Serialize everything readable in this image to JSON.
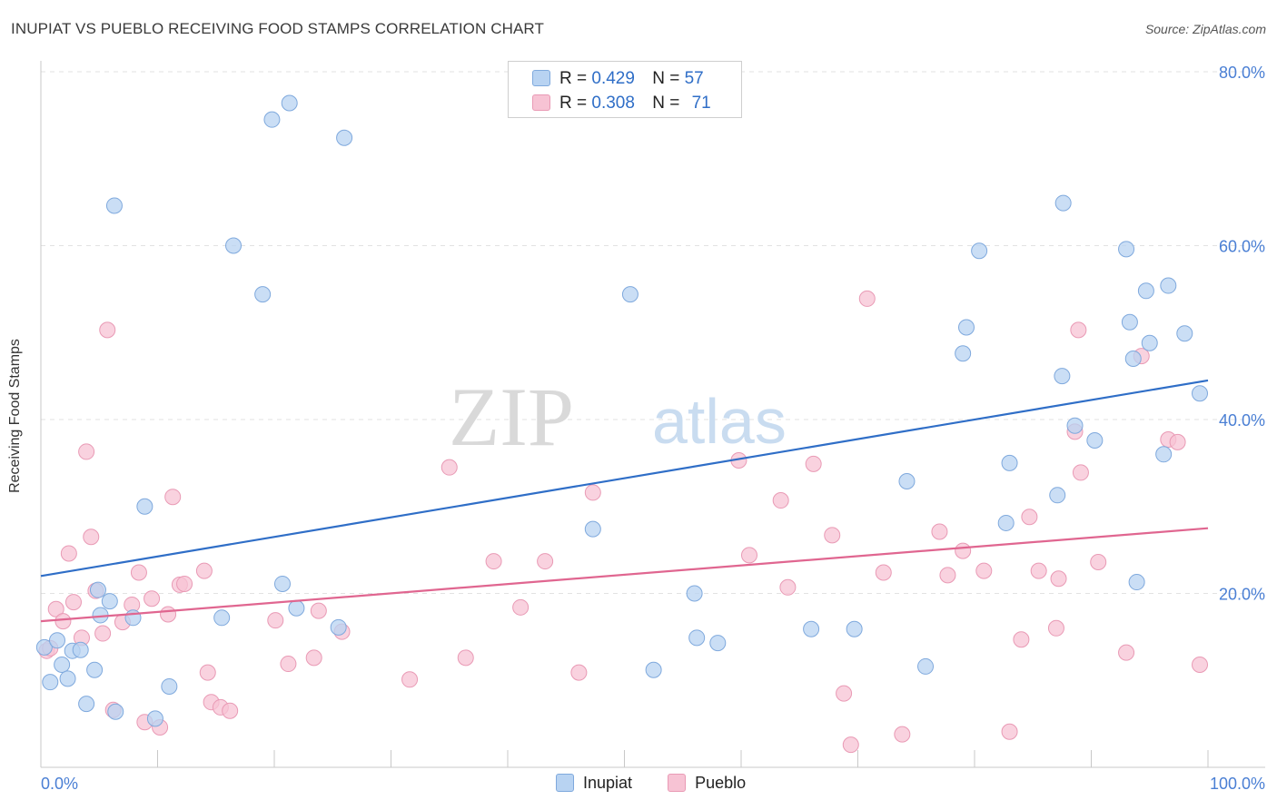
{
  "header": {
    "title": "INUPIAT VS PUEBLO RECEIVING FOOD STAMPS CORRELATION CHART",
    "source": "Source: ZipAtlas.com"
  },
  "watermark": {
    "part1": "ZIP",
    "part2": "atlas"
  },
  "legend": {
    "inupiat": {
      "r_label": "R =",
      "r_value": "0.429",
      "n_label": "N =",
      "n_value": "57"
    },
    "pueblo": {
      "r_label": "R =",
      "r_value": "0.308",
      "n_label": "N =",
      "n_value": "71"
    }
  },
  "colors": {
    "inupiat_fill": "#b8d3f2",
    "inupiat_stroke": "#7fa9dd",
    "inupiat_line": "#2f6ec7",
    "pueblo_fill": "#f7c3d4",
    "pueblo_stroke": "#e99ab5",
    "pueblo_line": "#e06690",
    "tick_text": "#4a7fd4"
  },
  "chart_data": {
    "type": "scatter",
    "title": "INUPIAT VS PUEBLO RECEIVING FOOD STAMPS CORRELATION CHART",
    "xlabel": "",
    "ylabel": "Receiving Food Stamps",
    "xlim": [
      0,
      100
    ],
    "ylim": [
      0,
      80
    ],
    "x_tick_labels": [
      "0.0%",
      "100.0%"
    ],
    "y_ticks": [
      20,
      40,
      60,
      80
    ],
    "y_tick_labels": [
      "20.0%",
      "40.0%",
      "60.0%",
      "80.0%"
    ],
    "grid": true,
    "legend_position": "top-center",
    "series": [
      {
        "name": "Inupiat",
        "trend": {
          "x": [
            0,
            100
          ],
          "y": [
            22.0,
            44.5
          ]
        },
        "points": [
          [
            0.3,
            13.8
          ],
          [
            0.8,
            9.8
          ],
          [
            1.4,
            14.6
          ],
          [
            1.8,
            11.8
          ],
          [
            2.3,
            10.2
          ],
          [
            2.7,
            13.4
          ],
          [
            3.4,
            13.5
          ],
          [
            3.9,
            7.3
          ],
          [
            4.6,
            11.2
          ],
          [
            4.9,
            20.4
          ],
          [
            5.1,
            17.5
          ],
          [
            5.9,
            19.1
          ],
          [
            6.4,
            6.4
          ],
          [
            6.3,
            64.6
          ],
          [
            7.9,
            17.2
          ],
          [
            8.9,
            30.0
          ],
          [
            9.8,
            5.6
          ],
          [
            11.0,
            9.3
          ],
          [
            15.5,
            17.2
          ],
          [
            16.5,
            60.0
          ],
          [
            19.0,
            54.4
          ],
          [
            19.8,
            74.5
          ],
          [
            20.7,
            21.1
          ],
          [
            21.3,
            76.4
          ],
          [
            21.9,
            18.3
          ],
          [
            25.5,
            16.1
          ],
          [
            26.0,
            72.4
          ],
          [
            47.3,
            27.4
          ],
          [
            50.5,
            54.4
          ],
          [
            52.5,
            11.2
          ],
          [
            56.0,
            20.0
          ],
          [
            56.2,
            14.9
          ],
          [
            58.0,
            14.3
          ],
          [
            66.0,
            15.9
          ],
          [
            69.7,
            15.9
          ],
          [
            74.2,
            32.9
          ],
          [
            75.8,
            11.6
          ],
          [
            79.0,
            47.6
          ],
          [
            79.3,
            50.6
          ],
          [
            80.4,
            59.4
          ],
          [
            82.7,
            28.1
          ],
          [
            83.0,
            35.0
          ],
          [
            87.1,
            31.3
          ],
          [
            87.5,
            45.0
          ],
          [
            87.6,
            64.9
          ],
          [
            88.6,
            39.3
          ],
          [
            90.3,
            37.6
          ],
          [
            93.0,
            59.6
          ],
          [
            93.3,
            51.2
          ],
          [
            93.6,
            47.0
          ],
          [
            93.9,
            21.3
          ],
          [
            94.7,
            54.8
          ],
          [
            95.0,
            48.8
          ],
          [
            96.2,
            36.0
          ],
          [
            96.6,
            55.4
          ],
          [
            98.0,
            49.9
          ],
          [
            99.3,
            43.0
          ]
        ]
      },
      {
        "name": "Pueblo",
        "trend": {
          "x": [
            0,
            100
          ],
          "y": [
            16.8,
            27.5
          ]
        },
        "points": [
          [
            0.5,
            13.4
          ],
          [
            0.8,
            13.7
          ],
          [
            1.3,
            18.2
          ],
          [
            1.9,
            16.8
          ],
          [
            2.4,
            24.6
          ],
          [
            2.8,
            19.0
          ],
          [
            3.5,
            14.9
          ],
          [
            3.9,
            36.3
          ],
          [
            4.3,
            26.5
          ],
          [
            4.7,
            20.3
          ],
          [
            5.3,
            15.4
          ],
          [
            5.7,
            50.3
          ],
          [
            6.2,
            6.6
          ],
          [
            7.0,
            16.7
          ],
          [
            7.8,
            18.7
          ],
          [
            8.4,
            22.4
          ],
          [
            8.9,
            5.2
          ],
          [
            9.5,
            19.4
          ],
          [
            10.2,
            4.6
          ],
          [
            10.9,
            17.6
          ],
          [
            11.3,
            31.1
          ],
          [
            11.9,
            21.0
          ],
          [
            12.3,
            21.1
          ],
          [
            14.0,
            22.6
          ],
          [
            14.3,
            10.9
          ],
          [
            14.6,
            7.5
          ],
          [
            15.4,
            6.9
          ],
          [
            16.2,
            6.5
          ],
          [
            20.1,
            16.9
          ],
          [
            21.2,
            11.9
          ],
          [
            23.4,
            12.6
          ],
          [
            23.8,
            18.0
          ],
          [
            25.8,
            15.6
          ],
          [
            31.6,
            10.1
          ],
          [
            35.0,
            34.5
          ],
          [
            36.4,
            12.6
          ],
          [
            38.8,
            23.7
          ],
          [
            41.1,
            18.4
          ],
          [
            43.2,
            23.7
          ],
          [
            46.1,
            10.9
          ],
          [
            47.3,
            31.6
          ],
          [
            59.8,
            35.3
          ],
          [
            60.7,
            24.4
          ],
          [
            63.4,
            30.7
          ],
          [
            64.0,
            20.7
          ],
          [
            66.2,
            34.9
          ],
          [
            67.8,
            26.7
          ],
          [
            68.8,
            8.5
          ],
          [
            69.4,
            2.6
          ],
          [
            70.8,
            53.9
          ],
          [
            72.2,
            22.4
          ],
          [
            73.8,
            3.8
          ],
          [
            77.0,
            27.1
          ],
          [
            77.7,
            22.1
          ],
          [
            79.0,
            24.9
          ],
          [
            80.8,
            22.6
          ],
          [
            83.0,
            4.1
          ],
          [
            84.0,
            14.7
          ],
          [
            84.7,
            28.8
          ],
          [
            85.5,
            22.6
          ],
          [
            87.0,
            16.0
          ],
          [
            87.2,
            21.7
          ],
          [
            88.6,
            38.6
          ],
          [
            88.9,
            50.3
          ],
          [
            89.1,
            33.9
          ],
          [
            90.6,
            23.6
          ],
          [
            93.0,
            13.2
          ],
          [
            94.3,
            47.3
          ],
          [
            96.6,
            37.7
          ],
          [
            97.4,
            37.4
          ],
          [
            99.3,
            11.8
          ]
        ]
      }
    ]
  },
  "bottom_legend": {
    "inupiat": "Inupiat",
    "pueblo": "Pueblo"
  }
}
